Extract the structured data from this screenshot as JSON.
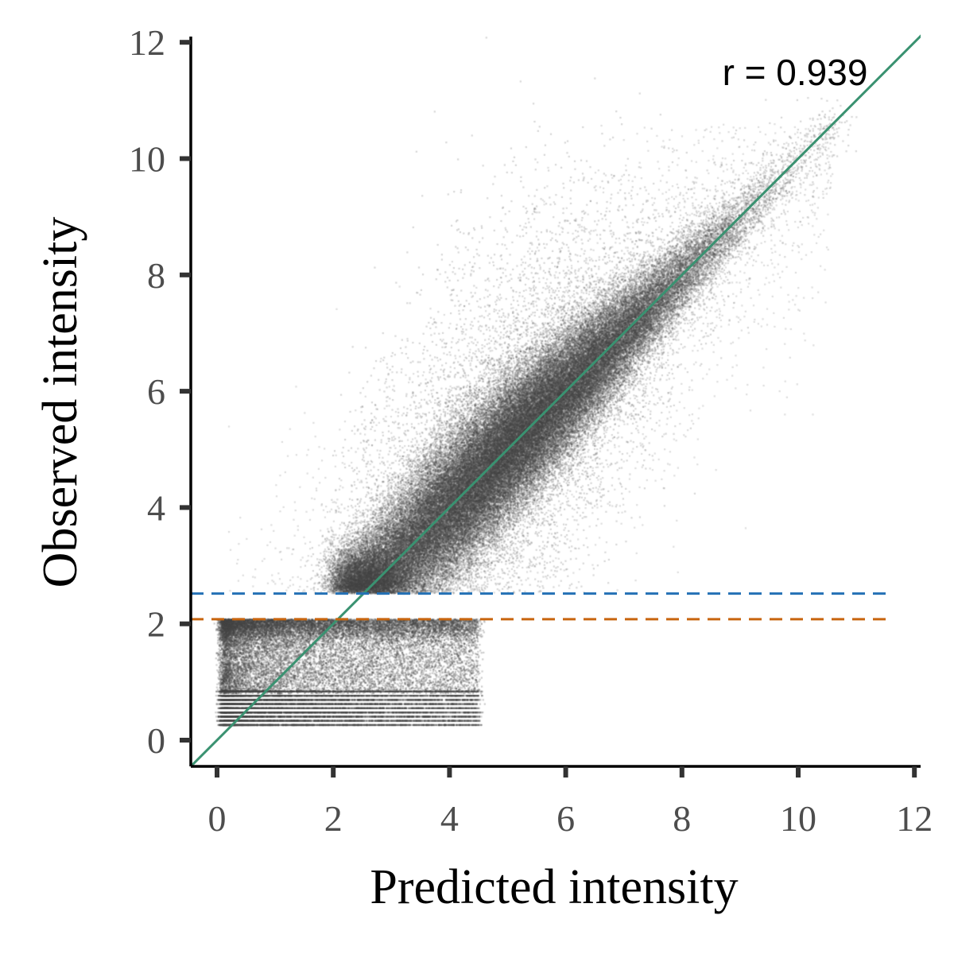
{
  "chart_data": {
    "type": "scatter",
    "title": "",
    "xlabel": "Predicted intensity",
    "ylabel": "Observed intensity",
    "xlim": [
      -0.45,
      12.15
    ],
    "ylim": [
      -0.45,
      12.15
    ],
    "x_ticks": [
      0,
      2,
      4,
      6,
      8,
      10,
      12
    ],
    "y_ticks": [
      0,
      2,
      4,
      6,
      8,
      10,
      12
    ],
    "x_tick_labels": [
      "0",
      "2",
      "4",
      "6",
      "8",
      "10",
      "12"
    ],
    "y_tick_labels": [
      "0",
      "2",
      "4",
      "6",
      "8",
      "10",
      "12"
    ],
    "grid": false,
    "annotation": "r = 0.939",
    "correlation_r": 0.939,
    "reference_line": {
      "kind": "identity",
      "slope": 1,
      "intercept": 0,
      "color": "#3a9271"
    },
    "threshold_lines": [
      {
        "y": 2.52,
        "color": "#2471b5",
        "style": "dashed"
      },
      {
        "y": 2.08,
        "color": "#c8650e",
        "style": "dashed"
      }
    ],
    "point_color": "#444444",
    "approx_point_count": 100000,
    "distribution": {
      "upper_band": {
        "observed_min": 2.52,
        "trend": "observed ≈ predicted",
        "predicted_range": [
          0.2,
          10.5
        ]
      },
      "gap": {
        "observed_range": [
          2.08,
          2.52
        ],
        "note": "almost no points"
      },
      "lower_band": {
        "observed_range": [
          0.25,
          2.08
        ],
        "predicted_range": [
          0.1,
          4.5
        ],
        "note": "discrete observed levels below 1"
      }
    }
  }
}
